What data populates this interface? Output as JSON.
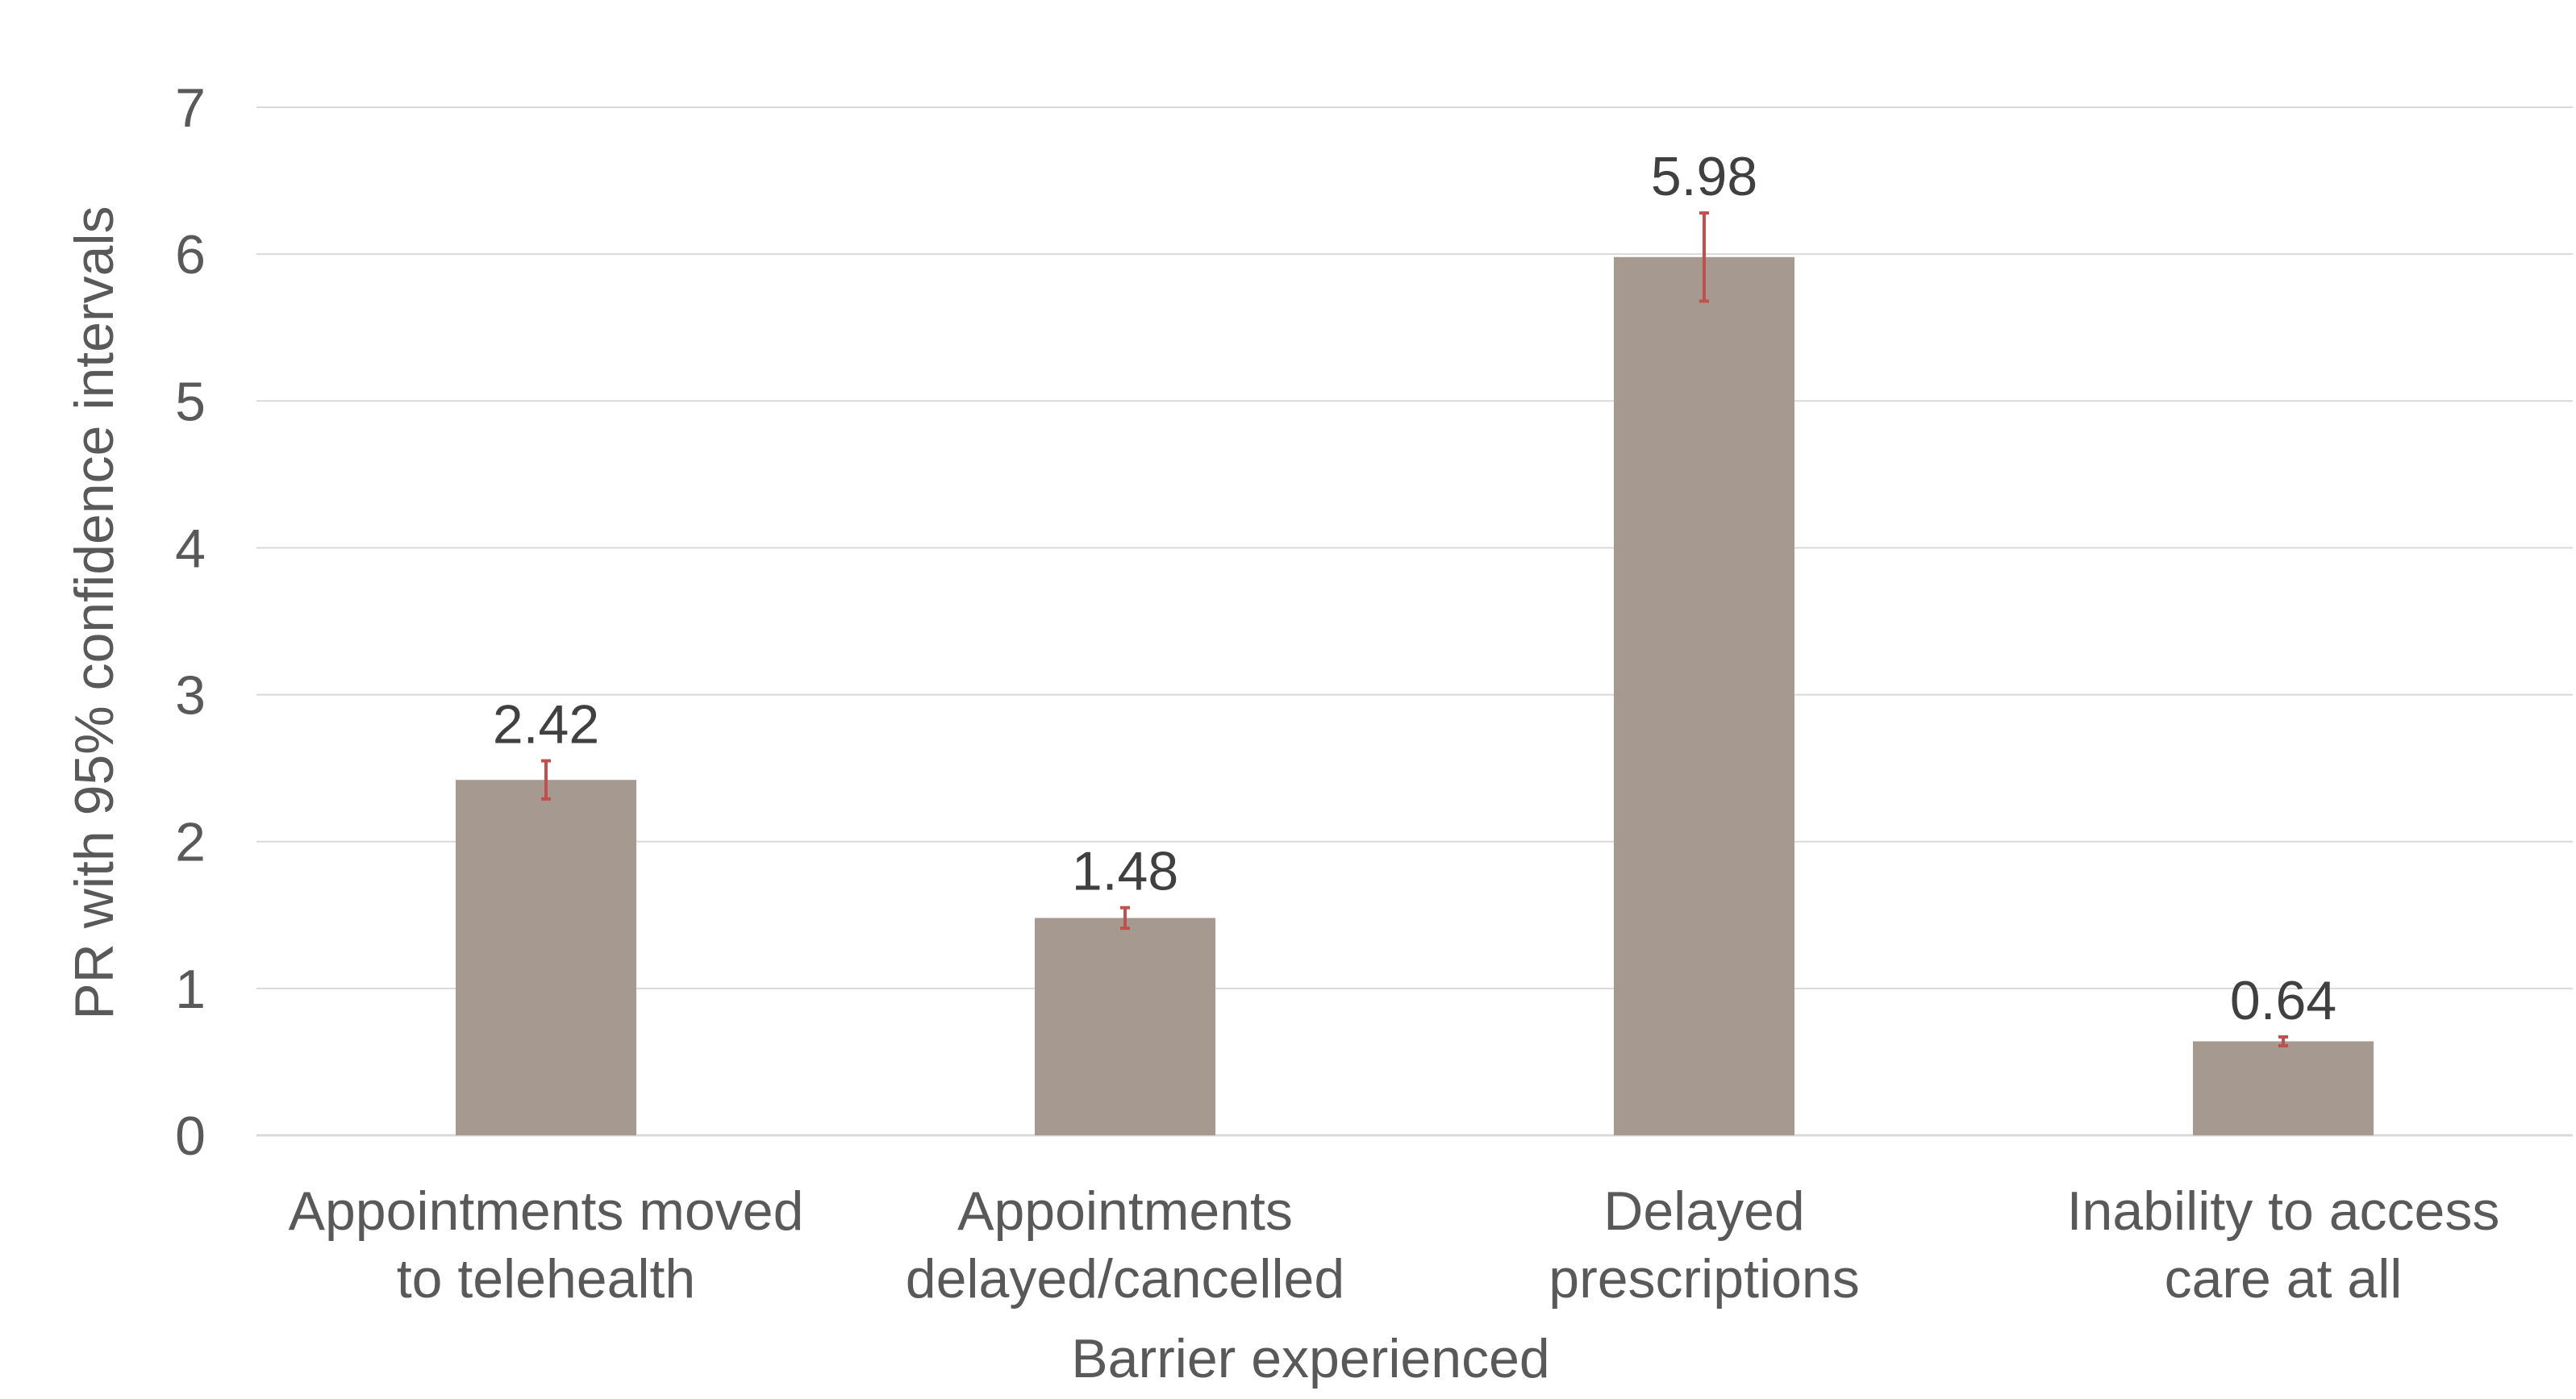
{
  "chart_data": {
    "type": "bar",
    "categories": [
      "Appointments moved to telehealth",
      "Appointments delayed/cancelled",
      "Delayed prescriptions",
      "Inability to access care at all"
    ],
    "category_lines": [
      [
        "Appointments moved",
        "to telehealth"
      ],
      [
        "Appointments",
        "delayed/cancelled"
      ],
      [
        "Delayed",
        "prescriptions"
      ],
      [
        "Inability to access",
        "care at all"
      ]
    ],
    "values": [
      2.42,
      1.48,
      5.98,
      0.64
    ],
    "value_labels": [
      "2.42",
      "1.48",
      "5.98",
      "0.64"
    ],
    "error_bars": {
      "lower": [
        2.29,
        1.41,
        5.68,
        0.61
      ],
      "upper": [
        2.55,
        1.55,
        6.28,
        0.67
      ]
    },
    "xlabel": "Barrier experienced",
    "ylabel": "PR with 95% confidence intervals",
    "ylim": [
      0,
      7
    ],
    "yticks": [
      "0",
      "1",
      "2",
      "3",
      "4",
      "5",
      "6",
      "7"
    ],
    "grid": true,
    "colors": {
      "bar": "#a69990",
      "error_bar": "#c0504d",
      "grid": "#d9d9d9",
      "text": "#595959"
    }
  }
}
